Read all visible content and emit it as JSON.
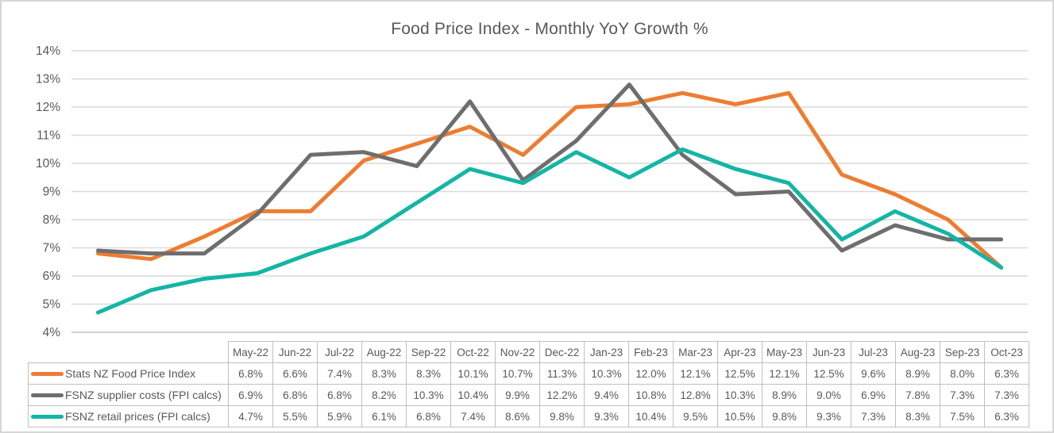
{
  "title": "Food Price Index - Monthly YoY Growth %",
  "colors": {
    "series_orange": "#ED7D31",
    "series_gray": "#6E6E6E",
    "series_teal": "#14B5A5",
    "gridline": "#D9D9D9",
    "axis_line": "#BFBFBF",
    "text": "#595959",
    "table_border": "#C0C0C0"
  },
  "chart_data": {
    "type": "line",
    "title": "Food Price Index - Monthly YoY Growth %",
    "categories": [
      "May-22",
      "Jun-22",
      "Jul-22",
      "Aug-22",
      "Sep-22",
      "Oct-22",
      "Nov-22",
      "Dec-22",
      "Jan-23",
      "Feb-23",
      "Mar-23",
      "Apr-23",
      "May-23",
      "Jun-23",
      "Jul-23",
      "Aug-23",
      "Sep-23",
      "Oct-23"
    ],
    "series": [
      {
        "name": "Stats NZ Food Price Index",
        "color": "#ED7D31",
        "values": [
          6.8,
          6.6,
          7.4,
          8.3,
          8.3,
          10.1,
          10.7,
          11.3,
          10.3,
          12.0,
          12.1,
          12.5,
          12.1,
          12.5,
          9.6,
          8.9,
          8.0,
          6.3
        ]
      },
      {
        "name": "FSNZ supplier costs (FPI calcs)",
        "color": "#6E6E6E",
        "values": [
          6.9,
          6.8,
          6.8,
          8.2,
          10.3,
          10.4,
          9.9,
          12.2,
          9.4,
          10.8,
          12.8,
          10.3,
          8.9,
          9.0,
          6.9,
          7.8,
          7.3,
          7.3
        ]
      },
      {
        "name": "FSNZ retail prices (FPI calcs)",
        "color": "#14B5A5",
        "values": [
          4.7,
          5.5,
          5.9,
          6.1,
          6.8,
          7.4,
          8.6,
          9.8,
          9.3,
          10.4,
          9.5,
          10.5,
          9.8,
          9.3,
          7.3,
          8.3,
          7.5,
          6.3
        ]
      }
    ],
    "xlabel": "",
    "ylabel": "",
    "ylim": [
      4,
      14
    ],
    "yticks": [
      "14%",
      "13%",
      "12%",
      "11%",
      "10%",
      "9%",
      "8%",
      "7%",
      "6%",
      "5%",
      "4%"
    ],
    "grid": true,
    "legend_position": "data-table-left"
  },
  "table": {
    "corner_label": "",
    "columns": [
      "May-22",
      "Jun-22",
      "Jul-22",
      "Aug-22",
      "Sep-22",
      "Oct-22",
      "Nov-22",
      "Dec-22",
      "Jan-23",
      "Feb-23",
      "Mar-23",
      "Apr-23",
      "May-23",
      "Jun-23",
      "Jul-23",
      "Aug-23",
      "Sep-23",
      "Oct-23"
    ],
    "rows": [
      {
        "label": "Stats NZ Food Price Index",
        "values": [
          "6.8%",
          "6.6%",
          "7.4%",
          "8.3%",
          "8.3%",
          "10.1%",
          "10.7%",
          "11.3%",
          "10.3%",
          "12.0%",
          "12.1%",
          "12.5%",
          "12.1%",
          "12.5%",
          "9.6%",
          "8.9%",
          "8.0%",
          "6.3%"
        ]
      },
      {
        "label": "FSNZ supplier costs (FPI calcs)",
        "values": [
          "6.9%",
          "6.8%",
          "6.8%",
          "8.2%",
          "10.3%",
          "10.4%",
          "9.9%",
          "12.2%",
          "9.4%",
          "10.8%",
          "12.8%",
          "10.3%",
          "8.9%",
          "9.0%",
          "6.9%",
          "7.8%",
          "7.3%",
          "7.3%"
        ]
      },
      {
        "label": "FSNZ retail prices (FPI calcs)",
        "values": [
          "4.7%",
          "5.5%",
          "5.9%",
          "6.1%",
          "6.8%",
          "7.4%",
          "8.6%",
          "9.8%",
          "9.3%",
          "10.4%",
          "9.5%",
          "10.5%",
          "9.8%",
          "9.3%",
          "7.3%",
          "8.3%",
          "7.5%",
          "6.3%"
        ]
      }
    ]
  }
}
